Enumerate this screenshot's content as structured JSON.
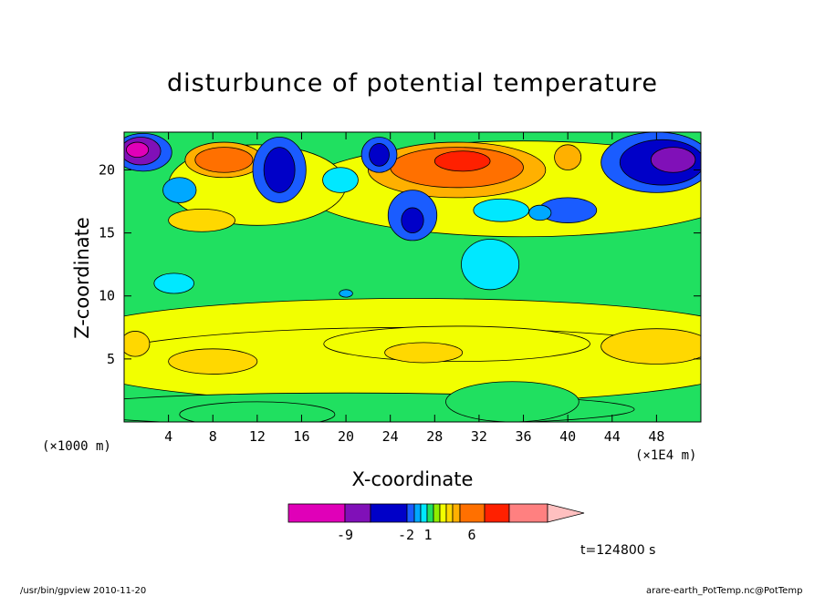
{
  "chart_data": {
    "type": "heatmap",
    "title": "disturbunce of potential temperature",
    "xlabel": "X-coordinate",
    "ylabel": "Z-coordinate",
    "x_unit_left": "(×1000 m)",
    "x_unit_right": "(×1E4 m)",
    "xlim": [
      0,
      52
    ],
    "ylim": [
      0,
      23
    ],
    "xticks": [
      4,
      8,
      12,
      16,
      20,
      24,
      28,
      32,
      36,
      40,
      44,
      48
    ],
    "yticks": [
      5,
      10,
      15,
      20
    ],
    "colorbar": {
      "labels": [
        "-9",
        "-2",
        "1",
        "6"
      ],
      "colors": [
        "#e000b8",
        "#8010b8",
        "#0000c8",
        "#1a5cff",
        "#00a8ff",
        "#00e8ff",
        "#20e060",
        "#90ee00",
        "#f2ff00",
        "#ffd800",
        "#ffb000",
        "#ff7000",
        "#ff2000",
        "#ff8080",
        "#ffc0c0"
      ]
    },
    "time_label": "t=124800 s",
    "footer_left": "/usr/bin/gpview   2010-11-20",
    "footer_right": "arare-earth_PotTemp.nc@PotTemp"
  }
}
